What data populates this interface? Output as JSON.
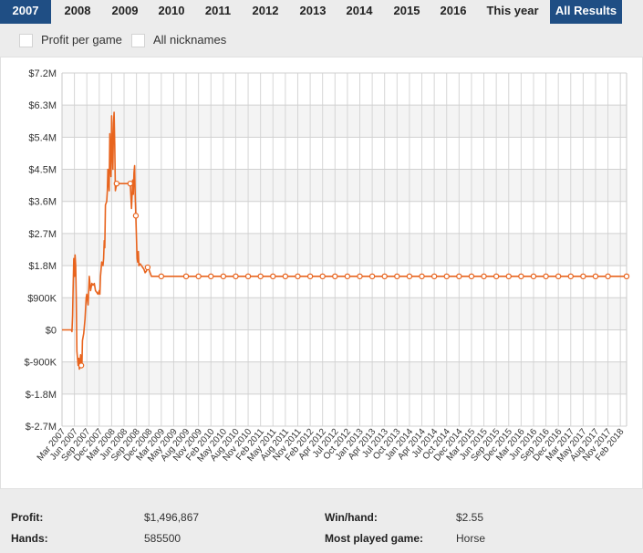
{
  "tabs": [
    {
      "label": "2007",
      "active": true
    },
    {
      "label": "2008",
      "active": false
    },
    {
      "label": "2009",
      "active": false
    },
    {
      "label": "2010",
      "active": false
    },
    {
      "label": "2011",
      "active": false
    },
    {
      "label": "2012",
      "active": false
    },
    {
      "label": "2013",
      "active": false
    },
    {
      "label": "2014",
      "active": false
    },
    {
      "label": "2015",
      "active": false
    },
    {
      "label": "2016",
      "active": false
    },
    {
      "label": "This year",
      "active": false
    },
    {
      "label": "All Results",
      "active": true
    }
  ],
  "options": {
    "profit_per_game": "Profit per game",
    "all_nicknames": "All nicknames"
  },
  "colors": {
    "accent": "#1f4e84",
    "line": "#e8641e",
    "plot_bg_band": "#f4f4f4"
  },
  "chart_data": {
    "type": "line",
    "title": "",
    "xlabel": "",
    "ylabel": "",
    "ylim": [
      -2700000,
      7200000
    ],
    "y_ticks": [
      {
        "value": 7200000,
        "label": "$7.2M"
      },
      {
        "value": 6300000,
        "label": "$6.3M"
      },
      {
        "value": 5400000,
        "label": "$5.4M"
      },
      {
        "value": 4500000,
        "label": "$4.5M"
      },
      {
        "value": 3600000,
        "label": "$3.6M"
      },
      {
        "value": 2700000,
        "label": "$2.7M"
      },
      {
        "value": 1800000,
        "label": "$1.8M"
      },
      {
        "value": 900000,
        "label": "$900K"
      },
      {
        "value": 0,
        "label": "$0"
      },
      {
        "value": -900000,
        "label": "$-900K"
      },
      {
        "value": -1800000,
        "label": "$-1.8M"
      },
      {
        "value": -2700000,
        "label": "$-2.7M"
      }
    ],
    "x_ticks": [
      "Mar 2007",
      "Jun 2007",
      "Sep 2007",
      "Dec 2007",
      "Mar 2008",
      "Jun 2008",
      "Sep 2008",
      "Dec 2008",
      "Mar 2009",
      "May 2009",
      "Aug 2009",
      "Nov 2009",
      "Feb 2010",
      "May 2010",
      "Aug 2010",
      "Nov 2010",
      "Feb 2011",
      "May 2011",
      "Aug 2011",
      "Nov 2011",
      "Feb 2012",
      "Apr 2012",
      "Jul 2012",
      "Oct 2012",
      "Jan 2013",
      "Apr 2013",
      "Jul 2013",
      "Oct 2013",
      "Jan 2014",
      "Apr 2014",
      "Jul 2014",
      "Oct 2014",
      "Dec 2014",
      "Mar 2015",
      "Jun 2015",
      "Sep 2015",
      "Dec 2015",
      "Mar 2016",
      "Jun 2016",
      "Sep 2016",
      "Dec 2016",
      "Mar 2017",
      "May 2017",
      "Aug 2017",
      "Nov 2017",
      "Feb 2018"
    ],
    "grid": true,
    "series": [
      {
        "points": [
          [
            0,
            0
          ],
          [
            0.3,
            0
          ],
          [
            0.5,
            0
          ],
          [
            0.75,
            0
          ],
          [
            0.8,
            -50000
          ],
          [
            0.85,
            400000
          ],
          [
            0.9,
            1200000
          ],
          [
            0.95,
            2000000
          ],
          [
            1.0,
            1500000
          ],
          [
            1.05,
            2100000
          ],
          [
            1.1,
            1800000
          ],
          [
            1.15,
            900000
          ],
          [
            1.2,
            -600000
          ],
          [
            1.3,
            -1000000
          ],
          [
            1.35,
            -800000
          ],
          [
            1.4,
            -1100000
          ],
          [
            1.5,
            -700000
          ],
          [
            1.55,
            -1000000
          ],
          [
            1.6,
            -1050000
          ],
          [
            1.65,
            -300000
          ],
          [
            1.75,
            -100000
          ],
          [
            1.85,
            300000
          ],
          [
            1.95,
            900000
          ],
          [
            2.0,
            1000000
          ],
          [
            2.1,
            700000
          ],
          [
            2.2,
            1500000
          ],
          [
            2.3,
            1100000
          ],
          [
            2.4,
            1300000
          ],
          [
            2.5,
            1250000
          ],
          [
            2.6,
            1300000
          ],
          [
            2.7,
            1100000
          ],
          [
            2.8,
            1050000
          ],
          [
            2.9,
            1000000
          ],
          [
            3.0,
            1100000
          ],
          [
            3.05,
            1000000
          ],
          [
            3.1,
            1500000
          ],
          [
            3.2,
            1900000
          ],
          [
            3.3,
            1800000
          ],
          [
            3.35,
            2000000
          ],
          [
            3.4,
            2500000
          ],
          [
            3.45,
            2300000
          ],
          [
            3.5,
            3500000
          ],
          [
            3.6,
            3600000
          ],
          [
            3.65,
            3900000
          ],
          [
            3.7,
            4500000
          ],
          [
            3.8,
            3900000
          ],
          [
            3.85,
            5500000
          ],
          [
            3.9,
            4600000
          ],
          [
            3.95,
            4300000
          ],
          [
            4.0,
            6000000
          ],
          [
            4.05,
            5000000
          ],
          [
            4.1,
            4500000
          ],
          [
            4.15,
            5800000
          ],
          [
            4.2,
            6100000
          ],
          [
            4.25,
            5200000
          ],
          [
            4.3,
            3900000
          ],
          [
            4.4,
            4100000
          ],
          [
            5.0,
            4100000
          ],
          [
            5.5,
            4100000
          ],
          [
            5.6,
            3400000
          ],
          [
            5.7,
            4200000
          ],
          [
            5.75,
            3800000
          ],
          [
            5.8,
            4400000
          ],
          [
            5.85,
            4600000
          ],
          [
            5.9,
            3700000
          ],
          [
            5.95,
            3200000
          ],
          [
            6.0,
            2600000
          ],
          [
            6.05,
            2000000
          ],
          [
            6.1,
            1900000
          ],
          [
            6.15,
            2200000
          ],
          [
            6.2,
            1800000
          ],
          [
            6.3,
            1850000
          ],
          [
            6.4,
            1800000
          ],
          [
            6.5,
            1750000
          ],
          [
            6.6,
            1700000
          ],
          [
            6.7,
            1600000
          ],
          [
            6.8,
            1650000
          ],
          [
            6.9,
            1750000
          ],
          [
            7.0,
            1700000
          ],
          [
            7.1,
            1600000
          ],
          [
            7.2,
            1500000
          ],
          [
            8,
            1500000
          ],
          [
            9,
            1500000
          ],
          [
            10,
            1500000
          ],
          [
            11,
            1500000
          ],
          [
            12,
            1500000
          ],
          [
            13,
            1500000
          ],
          [
            14,
            1500000
          ],
          [
            15,
            1500000
          ],
          [
            16,
            1500000
          ],
          [
            17,
            1500000
          ],
          [
            18,
            1500000
          ],
          [
            19,
            1500000
          ],
          [
            20,
            1500000
          ],
          [
            21,
            1500000
          ],
          [
            45.5,
            1500000
          ]
        ],
        "markers_at": [
          1.55,
          4.4,
          5.5,
          5.95,
          6.9,
          8,
          10,
          11,
          12,
          13,
          14,
          15,
          16,
          17,
          18,
          19,
          20,
          21,
          22,
          23,
          24,
          25,
          26,
          27,
          28,
          29,
          30,
          31,
          32,
          33,
          34,
          35,
          36,
          37,
          38,
          39,
          40,
          41,
          42,
          43,
          44,
          45.5
        ]
      }
    ]
  },
  "stats": {
    "profit_label": "Profit:",
    "profit_value": "$1,496,867",
    "hands_label": "Hands:",
    "hands_value": "585500",
    "winhand_label": "Win/hand:",
    "winhand_value": "$2.55",
    "most_played_label": "Most played game:",
    "most_played_value": "Horse"
  }
}
